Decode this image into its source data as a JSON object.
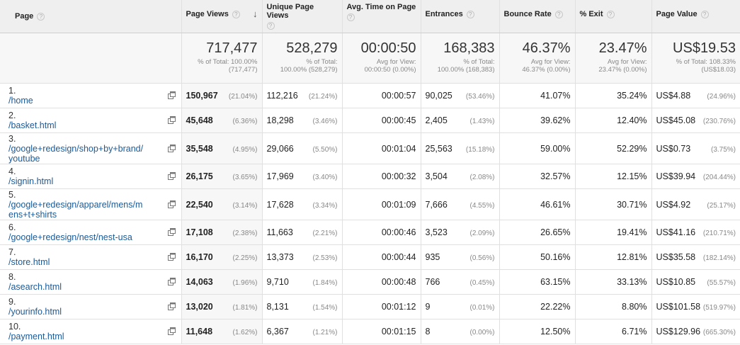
{
  "headers": {
    "page": "Page",
    "page_views": "Page Views",
    "unique_page_views": "Unique Page Views",
    "avg_time": "Avg. Time on Page",
    "entrances": "Entrances",
    "bounce_rate": "Bounce Rate",
    "exit": "% Exit",
    "page_value": "Page Value",
    "help_glyph": "?",
    "sort_glyph": "↓"
  },
  "totals": {
    "page_views": {
      "value": "717,477",
      "sub1": "% of Total: 100.00%",
      "sub2": "(717,477)"
    },
    "unique_page_views": {
      "value": "528,279",
      "sub1": "% of Total:",
      "sub2": "100.00% (528,279)"
    },
    "avg_time": {
      "value": "00:00:50",
      "sub1": "Avg for View:",
      "sub2": "00:00:50 (0.00%)"
    },
    "entrances": {
      "value": "168,383",
      "sub1": "% of Total:",
      "sub2": "100.00% (168,383)"
    },
    "bounce_rate": {
      "value": "46.37%",
      "sub1": "Avg for View:",
      "sub2": "46.37% (0.00%)"
    },
    "exit": {
      "value": "23.47%",
      "sub1": "Avg for View:",
      "sub2": "23.47% (0.00%)"
    },
    "page_value": {
      "value": "US$19.53",
      "sub1": "% of Total: 108.33%",
      "sub2": "(US$18.03)"
    }
  },
  "rows": [
    {
      "idx": "1.",
      "page": "/home",
      "pv": "150,967",
      "pv_pct": "(21.04%)",
      "upv": "112,216",
      "upv_pct": "(21.24%)",
      "time": "00:00:57",
      "ent": "90,025",
      "ent_pct": "(53.46%)",
      "bounce": "41.07%",
      "exit": "35.24%",
      "val": "US$4.88",
      "val_pct": "(24.96%)"
    },
    {
      "idx": "2.",
      "page": "/basket.html",
      "pv": "45,648",
      "pv_pct": "(6.36%)",
      "upv": "18,298",
      "upv_pct": "(3.46%)",
      "time": "00:00:45",
      "ent": "2,405",
      "ent_pct": "(1.43%)",
      "bounce": "39.62%",
      "exit": "12.40%",
      "val": "US$45.08",
      "val_pct": "(230.76%)"
    },
    {
      "idx": "3.",
      "page": "/google+redesign/shop+by+brand/youtube",
      "pv": "35,548",
      "pv_pct": "(4.95%)",
      "upv": "29,066",
      "upv_pct": "(5.50%)",
      "time": "00:01:04",
      "ent": "25,563",
      "ent_pct": "(15.18%)",
      "bounce": "59.00%",
      "exit": "52.29%",
      "val": "US$0.73",
      "val_pct": "(3.75%)"
    },
    {
      "idx": "4.",
      "page": "/signin.html",
      "pv": "26,175",
      "pv_pct": "(3.65%)",
      "upv": "17,969",
      "upv_pct": "(3.40%)",
      "time": "00:00:32",
      "ent": "3,504",
      "ent_pct": "(2.08%)",
      "bounce": "32.57%",
      "exit": "12.15%",
      "val": "US$39.94",
      "val_pct": "(204.44%)"
    },
    {
      "idx": "5.",
      "page": "/google+redesign/apparel/mens/mens+t+shirts",
      "pv": "22,540",
      "pv_pct": "(3.14%)",
      "upv": "17,628",
      "upv_pct": "(3.34%)",
      "time": "00:01:09",
      "ent": "7,666",
      "ent_pct": "(4.55%)",
      "bounce": "46.61%",
      "exit": "30.71%",
      "val": "US$4.92",
      "val_pct": "(25.17%)"
    },
    {
      "idx": "6.",
      "page": "/google+redesign/nest/nest-usa",
      "pv": "17,108",
      "pv_pct": "(2.38%)",
      "upv": "11,663",
      "upv_pct": "(2.21%)",
      "time": "00:00:46",
      "ent": "3,523",
      "ent_pct": "(2.09%)",
      "bounce": "26.65%",
      "exit": "19.41%",
      "val": "US$41.16",
      "val_pct": "(210.71%)"
    },
    {
      "idx": "7.",
      "page": "/store.html",
      "pv": "16,170",
      "pv_pct": "(2.25%)",
      "upv": "13,373",
      "upv_pct": "(2.53%)",
      "time": "00:00:44",
      "ent": "935",
      "ent_pct": "(0.56%)",
      "bounce": "50.16%",
      "exit": "12.81%",
      "val": "US$35.58",
      "val_pct": "(182.14%)"
    },
    {
      "idx": "8.",
      "page": "/asearch.html",
      "pv": "14,063",
      "pv_pct": "(1.96%)",
      "upv": "9,710",
      "upv_pct": "(1.84%)",
      "time": "00:00:48",
      "ent": "766",
      "ent_pct": "(0.45%)",
      "bounce": "63.15%",
      "exit": "33.13%",
      "val": "US$10.85",
      "val_pct": "(55.57%)"
    },
    {
      "idx": "9.",
      "page": "/yourinfo.html",
      "pv": "13,020",
      "pv_pct": "(1.81%)",
      "upv": "8,131",
      "upv_pct": "(1.54%)",
      "time": "00:01:12",
      "ent": "9",
      "ent_pct": "(0.01%)",
      "bounce": "22.22%",
      "exit": "8.80%",
      "val": "US$101.58",
      "val_pct": "(519.97%)"
    },
    {
      "idx": "10.",
      "page": "/payment.html",
      "pv": "11,648",
      "pv_pct": "(1.62%)",
      "upv": "6,367",
      "upv_pct": "(1.21%)",
      "time": "00:01:15",
      "ent": "8",
      "ent_pct": "(0.00%)",
      "bounce": "12.50%",
      "exit": "6.71%",
      "val": "US$129.96",
      "val_pct": "(665.30%)"
    }
  ],
  "link_color": "#1a5a9a",
  "icons": {
    "help": "help-circle-icon",
    "sort": "sort-descending-arrow-icon",
    "open": "open-in-new-window-icon"
  }
}
